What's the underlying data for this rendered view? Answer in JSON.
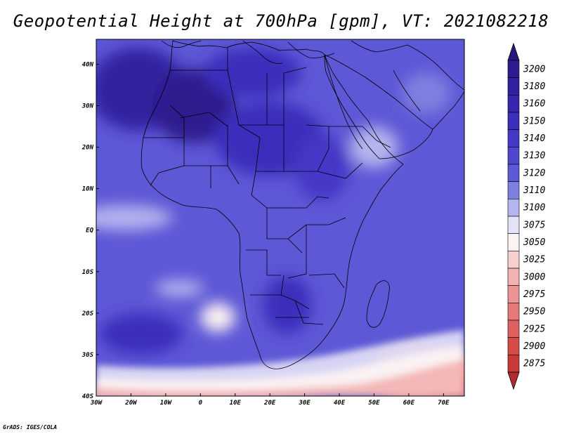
{
  "title": "Geopotential Height at 700hPa [gpm], VT: 2021082218",
  "credit": "GrADS: IGES/COLA",
  "map": {
    "lon_range": [
      -30,
      76
    ],
    "lat_range": [
      -40,
      46
    ],
    "lat_labels": [
      {
        "lat": 40,
        "label": "40N"
      },
      {
        "lat": 30,
        "label": "30N"
      },
      {
        "lat": 20,
        "label": "20N"
      },
      {
        "lat": 10,
        "label": "10N"
      },
      {
        "lat": 0,
        "label": "EQ"
      },
      {
        "lat": -10,
        "label": "10S"
      },
      {
        "lat": -20,
        "label": "20S"
      },
      {
        "lat": -30,
        "label": "30S"
      },
      {
        "lat": -40,
        "label": "40S"
      }
    ],
    "lon_labels": [
      {
        "lon": -30,
        "label": "30W"
      },
      {
        "lon": -20,
        "label": "20W"
      },
      {
        "lon": -10,
        "label": "10W"
      },
      {
        "lon": 0,
        "label": "0"
      },
      {
        "lon": 10,
        "label": "10E"
      },
      {
        "lon": 20,
        "label": "20E"
      },
      {
        "lon": 30,
        "label": "30E"
      },
      {
        "lon": 40,
        "label": "40E"
      },
      {
        "lon": 50,
        "label": "50E"
      },
      {
        "lon": 60,
        "label": "60E"
      },
      {
        "lon": 70,
        "label": "70E"
      }
    ]
  },
  "colorbar": {
    "levels": [
      {
        "label": "3200",
        "color": "#2d1c8f"
      },
      {
        "label": "3180",
        "color": "#3120a0"
      },
      {
        "label": "3160",
        "color": "#3626ae"
      },
      {
        "label": "3150",
        "color": "#3b2fbc"
      },
      {
        "label": "3140",
        "color": "#4438c6"
      },
      {
        "label": "3130",
        "color": "#4f46cf"
      },
      {
        "label": "3120",
        "color": "#5d58d6"
      },
      {
        "label": "3110",
        "color": "#7f7fe0"
      },
      {
        "label": "3100",
        "color": "#b4b4ef"
      },
      {
        "label": "3075",
        "color": "#e4e2f6"
      },
      {
        "label": "3050",
        "color": "#fbf2f2"
      },
      {
        "label": "3025",
        "color": "#f7cfcf"
      },
      {
        "label": "3000",
        "color": "#f3b1b1"
      },
      {
        "label": "2975",
        "color": "#ec9494"
      },
      {
        "label": "2950",
        "color": "#e67878"
      },
      {
        "label": "2925",
        "color": "#e06060"
      },
      {
        "label": "2900",
        "color": "#d84a4a"
      },
      {
        "label": "2875",
        "color": "#c83a3a"
      }
    ],
    "top_arrow_color": "#261780",
    "bottom_arrow_color": "#b52a2a"
  },
  "field": {
    "background_color": "#5d58d6",
    "features": [
      {
        "kind": "high",
        "lon": -18,
        "lat": 34,
        "rx": 14,
        "ry": 10,
        "color": "#3120a0"
      },
      {
        "kind": "high",
        "lon": -2,
        "lat": 30,
        "rx": 12,
        "ry": 9,
        "color": "#2d1c8f"
      },
      {
        "kind": "high",
        "lon": 15,
        "lat": 38,
        "rx": 14,
        "ry": 6,
        "color": "#3b2fbc"
      },
      {
        "kind": "high",
        "lon": 20,
        "lat": 22,
        "rx": 16,
        "ry": 9,
        "color": "#3b2fbc"
      },
      {
        "kind": "high",
        "lon": 35,
        "lat": 15,
        "rx": 8,
        "ry": 8,
        "color": "#4438c6"
      },
      {
        "kind": "high",
        "lon": 25,
        "lat": -18,
        "rx": 7,
        "ry": 7,
        "color": "#3b2fbc"
      },
      {
        "kind": "high",
        "lon": -17,
        "lat": -25,
        "rx": 12,
        "ry": 5,
        "color": "#3b2fbc"
      },
      {
        "kind": "low",
        "lon": 50,
        "lat": 20,
        "rx": 7,
        "ry": 5,
        "color": "#b4b4ef"
      },
      {
        "kind": "low",
        "lon": -22,
        "lat": 3,
        "rx": 14,
        "ry": 3,
        "color": "#b4b4ef"
      },
      {
        "kind": "low",
        "lon": -6,
        "lat": -14,
        "rx": 7,
        "ry": 2,
        "color": "#b4b4ef"
      },
      {
        "kind": "low",
        "lon": 5,
        "lat": -21,
        "rx": 5,
        "ry": 3.5,
        "color": "#fbf2f2"
      },
      {
        "kind": "low",
        "lon": 65,
        "lat": 33,
        "rx": 7,
        "ry": 5,
        "color": "#7f7fe0"
      },
      {
        "kind": "low",
        "lon": 65,
        "lat": -35,
        "rx": 16,
        "ry": 7,
        "color": "#ec9494"
      },
      {
        "kind": "low",
        "lon": 72,
        "lat": -37,
        "rx": 7,
        "ry": 3,
        "color": "#e06060"
      },
      {
        "kind": "low",
        "lon": -5,
        "lat": -39,
        "rx": 40,
        "ry": 2.5,
        "color": "#f3b1b1"
      }
    ]
  }
}
